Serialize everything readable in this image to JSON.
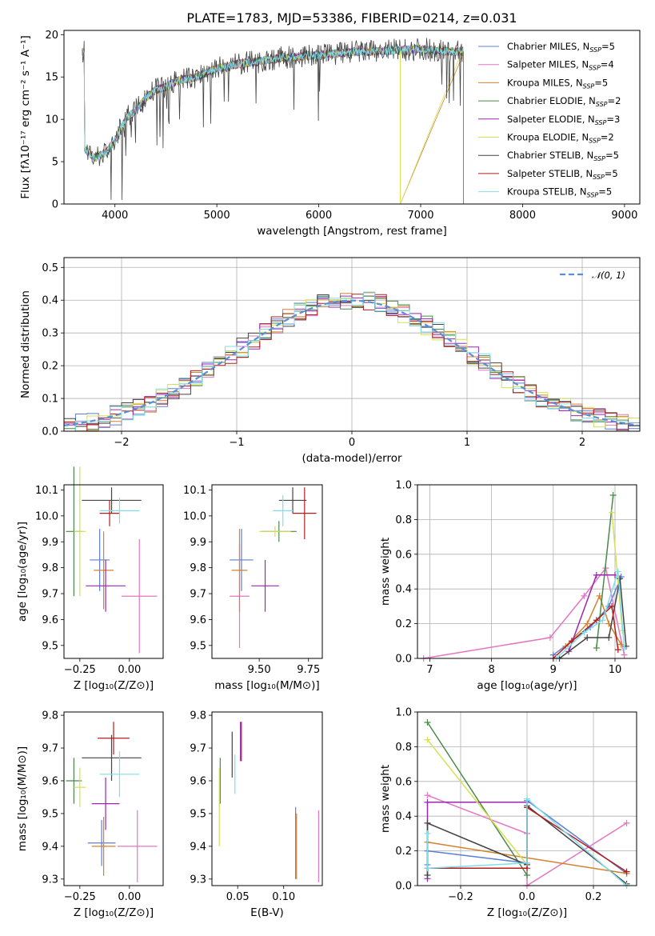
{
  "title": "PLATE=1783, MJD=53386, FIBERID=0214, z=0.031",
  "legend": [
    {
      "label": "Chabrier MILES, N",
      "sub": "SSP",
      "suffix": "=5",
      "color": "#5b7fd6"
    },
    {
      "label": "Salpeter MILES, N",
      "sub": "SSP",
      "suffix": "=4",
      "color": "#e377c2"
    },
    {
      "label": "Kroupa MILES, N",
      "sub": "SSP",
      "suffix": "=5",
      "color": "#d4822e"
    },
    {
      "label": "Chabrier ELODIE, N",
      "sub": "SSP",
      "suffix": "=2",
      "color": "#4a8a4a"
    },
    {
      "label": "Salpeter ELODIE, N",
      "sub": "SSP",
      "suffix": "=3",
      "color": "#9b27b0"
    },
    {
      "label": "Kroupa ELODIE, N",
      "sub": "SSP",
      "suffix": "=2",
      "color": "#d4e157"
    },
    {
      "label": "Chabrier STELIB, N",
      "sub": "SSP",
      "suffix": "=5",
      "color": "#444444"
    },
    {
      "label": "Salpeter STELIB, N",
      "sub": "SSP",
      "suffix": "=5",
      "color": "#b71c1c"
    },
    {
      "label": "Kroupa STELIB, N",
      "sub": "SSP",
      "suffix": "=5",
      "color": "#80deea"
    }
  ],
  "chart_data": [
    {
      "type": "line",
      "name": "spectrum",
      "xlabel": "wavelength [Angstrom, rest frame]",
      "ylabel": "Flux [fλ10⁻¹⁷ erg cm⁻² s⁻¹ A⁻¹]",
      "xlim": [
        3500,
        9150
      ],
      "ylim": [
        0,
        20.5
      ],
      "xticks": [
        4000,
        5000,
        6000,
        7000,
        8000,
        9000
      ],
      "yticks": [
        0,
        5,
        10,
        15,
        20
      ],
      "x": [
        3700,
        3800,
        3900,
        4000,
        4100,
        4200,
        4300,
        4400,
        4500,
        4600,
        4800,
        5000,
        5200,
        5400,
        5600,
        5800,
        6000,
        6200,
        6400,
        6600,
        6800,
        7000,
        7200,
        7400
      ],
      "y": [
        6.5,
        5.5,
        6.0,
        7.5,
        10.0,
        11.0,
        12.5,
        13.5,
        13.8,
        14.5,
        15.0,
        16.0,
        16.5,
        16.8,
        17.2,
        17.4,
        17.6,
        17.8,
        18.0,
        18.0,
        18.2,
        18.3,
        18.1,
        18.0
      ],
      "legend_position": "right"
    },
    {
      "type": "histogram",
      "name": "residuals",
      "xlabel": "(data-model)/error",
      "ylabel": "Normed distribution",
      "xlim": [
        -2.5,
        2.5
      ],
      "ylim": [
        0,
        0.53
      ],
      "xticks": [
        -2,
        -1,
        0,
        1,
        2
      ],
      "yticks": [
        0.0,
        0.1,
        0.2,
        0.3,
        0.4,
        0.5
      ],
      "reference": {
        "label": "𝒩(0, 1)",
        "type": "gaussian",
        "mean": 0,
        "sigma": 1
      },
      "legend_position": "top-right"
    },
    {
      "type": "scatter",
      "name": "age-vs-Z",
      "xlabel": "Z [log₁₀(Z/Z⊙)]",
      "ylabel": "age  [log₁₀(age/yr)]",
      "xlim": [
        -0.33,
        0.17
      ],
      "ylim": [
        9.45,
        10.12
      ],
      "xticks": [
        -0.25,
        0.0
      ],
      "yticks": [
        9.5,
        9.6,
        9.7,
        9.8,
        9.9,
        10.0,
        10.1
      ],
      "points": [
        {
          "x": -0.15,
          "y": 9.83,
          "xerr": 0.05,
          "yerr": 0.12,
          "color": "#5b7fd6"
        },
        {
          "x": 0.05,
          "y": 9.69,
          "xerr": 0.09,
          "yerr": 0.22,
          "color": "#e377c2"
        },
        {
          "x": -0.13,
          "y": 9.79,
          "xerr": 0.05,
          "yerr": 0.15,
          "color": "#d4822e"
        },
        {
          "x": -0.28,
          "y": 9.94,
          "xerr": 0.04,
          "yerr": 0.25,
          "color": "#4a8a4a"
        },
        {
          "x": -0.12,
          "y": 9.73,
          "xerr": 0.1,
          "yerr": 0.1,
          "color": "#9b27b0"
        },
        {
          "x": -0.25,
          "y": 9.94,
          "xerr": 0.03,
          "yerr": 0.25,
          "color": "#d4e157"
        },
        {
          "x": -0.09,
          "y": 10.06,
          "xerr": 0.15,
          "yerr": 0.05,
          "color": "#444444"
        },
        {
          "x": -0.1,
          "y": 10.01,
          "xerr": 0.05,
          "yerr": 0.05,
          "color": "#b71c1c"
        },
        {
          "x": -0.05,
          "y": 10.02,
          "xerr": 0.1,
          "yerr": 0.05,
          "color": "#80deea"
        }
      ]
    },
    {
      "type": "scatter",
      "name": "age-vs-mass",
      "xlabel": "mass [log₁₀(M/M⊙)]",
      "ylabel": "",
      "xlim": [
        9.26,
        9.82
      ],
      "ylim": [
        9.45,
        10.12
      ],
      "xticks": [
        9.5,
        9.75
      ],
      "yticks": [
        9.5,
        9.6,
        9.7,
        9.8,
        9.9,
        10.0,
        10.1
      ],
      "points": [
        {
          "x": 9.41,
          "y": 9.83,
          "xerr": 0.06,
          "yerr": 0.12,
          "color": "#5b7fd6"
        },
        {
          "x": 9.4,
          "y": 9.69,
          "xerr": 0.05,
          "yerr": 0.2,
          "color": "#e377c2"
        },
        {
          "x": 9.4,
          "y": 9.79,
          "xerr": 0.04,
          "yerr": 0.16,
          "color": "#d4822e"
        },
        {
          "x": 9.6,
          "y": 9.94,
          "xerr": 0.09,
          "yerr": 0.04,
          "color": "#4a8a4a"
        },
        {
          "x": 9.53,
          "y": 9.73,
          "xerr": 0.07,
          "yerr": 0.1,
          "color": "#9b27b0"
        },
        {
          "x": 9.58,
          "y": 9.94,
          "xerr": 0.08,
          "yerr": 0.02,
          "color": "#d4e157"
        },
        {
          "x": 9.67,
          "y": 10.06,
          "xerr": 0.07,
          "yerr": 0.05,
          "color": "#444444"
        },
        {
          "x": 9.73,
          "y": 10.01,
          "xerr": 0.06,
          "yerr": 0.1,
          "color": "#b71c1c"
        },
        {
          "x": 9.62,
          "y": 10.02,
          "xerr": 0.05,
          "yerr": 0.06,
          "color": "#80deea"
        }
      ]
    },
    {
      "type": "line",
      "name": "mass-weight-vs-age",
      "xlabel": "age  [log₁₀(age/yr)]",
      "ylabel": "mass weight",
      "xlim": [
        6.8,
        10.35
      ],
      "ylim": [
        0,
        1.0
      ],
      "xticks": [
        7,
        8,
        9,
        10
      ],
      "yticks": [
        0.0,
        0.2,
        0.4,
        0.6,
        0.8,
        1.0
      ],
      "series": [
        {
          "color": "#5b7fd6",
          "x": [
            9.0,
            9.3,
            9.6,
            9.9,
            10.1
          ],
          "y": [
            0.02,
            0.1,
            0.18,
            0.3,
            0.47
          ]
        },
        {
          "color": "#e377c2",
          "x": [
            6.9,
            8.95,
            9.5,
            9.85,
            10.15
          ],
          "y": [
            0.0,
            0.12,
            0.36,
            0.52,
            0.02
          ]
        },
        {
          "color": "#d4822e",
          "x": [
            9.2,
            9.55,
            9.75,
            9.9,
            10.1
          ],
          "y": [
            0.07,
            0.2,
            0.36,
            0.2,
            0.08
          ]
        },
        {
          "color": "#4a8a4a",
          "x": [
            9.7,
            9.97
          ],
          "y": [
            0.06,
            0.94
          ]
        },
        {
          "color": "#9b27b0",
          "x": [
            9.25,
            9.7,
            10.0
          ],
          "y": [
            0.04,
            0.48,
            0.48
          ]
        },
        {
          "color": "#d4e157",
          "x": [
            9.95,
            10.12
          ],
          "y": [
            0.84,
            0.16
          ]
        },
        {
          "color": "#444444",
          "x": [
            9.1,
            9.55,
            9.9,
            10.08,
            10.18
          ],
          "y": [
            0.0,
            0.12,
            0.12,
            0.46,
            0.07
          ]
        },
        {
          "color": "#b71c1c",
          "x": [
            9.0,
            9.3,
            9.7,
            9.95,
            10.05
          ],
          "y": [
            0.0,
            0.1,
            0.22,
            0.3,
            0.05
          ]
        },
        {
          "color": "#80deea",
          "x": [
            9.05,
            9.5,
            9.8,
            10.05,
            10.15
          ],
          "y": [
            0.0,
            0.15,
            0.22,
            0.5,
            0.06
          ]
        }
      ]
    },
    {
      "type": "scatter",
      "name": "mass-vs-Z",
      "xlabel": "Z [log₁₀(Z/Z⊙)]",
      "ylabel": "mass [log₁₀(M/M⊙)]",
      "xlim": [
        -0.33,
        0.17
      ],
      "ylim": [
        9.28,
        9.81
      ],
      "xticks": [
        -0.25,
        0.0
      ],
      "yticks": [
        9.3,
        9.4,
        9.5,
        9.6,
        9.7,
        9.8
      ],
      "points": [
        {
          "x": -0.14,
          "y": 9.41,
          "xerr": 0.07,
          "yerr": 0.07,
          "color": "#5b7fd6"
        },
        {
          "x": 0.04,
          "y": 9.4,
          "xerr": 0.1,
          "yerr": 0.11,
          "color": "#e377c2"
        },
        {
          "x": -0.13,
          "y": 9.4,
          "xerr": 0.06,
          "yerr": 0.09,
          "color": "#d4822e"
        },
        {
          "x": -0.28,
          "y": 9.6,
          "xerr": 0.04,
          "yerr": 0.07,
          "color": "#4a8a4a"
        },
        {
          "x": -0.12,
          "y": 9.53,
          "xerr": 0.07,
          "yerr": 0.08,
          "color": "#9b27b0"
        },
        {
          "x": -0.25,
          "y": 9.58,
          "xerr": 0.03,
          "yerr": 0.06,
          "color": "#d4e157"
        },
        {
          "x": -0.09,
          "y": 9.67,
          "xerr": 0.15,
          "yerr": 0.07,
          "color": "#444444"
        },
        {
          "x": -0.08,
          "y": 9.73,
          "xerr": 0.08,
          "yerr": 0.05,
          "color": "#b71c1c"
        },
        {
          "x": -0.05,
          "y": 9.62,
          "xerr": 0.1,
          "yerr": 0.07,
          "color": "#80deea"
        }
      ]
    },
    {
      "type": "scatter",
      "name": "mass-vs-ebv",
      "xlabel": "E(B-V)",
      "ylabel": "",
      "xlim": [
        0.022,
        0.142
      ],
      "ylim": [
        9.28,
        9.81
      ],
      "xticks": [
        0.05,
        0.1
      ],
      "yticks": [
        9.3,
        9.4,
        9.5,
        9.6,
        9.7,
        9.8
      ],
      "points": [
        {
          "x": 0.113,
          "y": 9.41,
          "xerr": 0,
          "yerr": 0.11,
          "color": "#5b7fd6"
        },
        {
          "x": 0.138,
          "y": 9.4,
          "xerr": 0,
          "yerr": 0.11,
          "color": "#e377c2"
        },
        {
          "x": 0.114,
          "y": 9.4,
          "xerr": 0,
          "yerr": 0.1,
          "color": "#d4822e"
        },
        {
          "x": 0.031,
          "y": 9.6,
          "xerr": 0,
          "yerr": 0.07,
          "color": "#4a8a4a"
        },
        {
          "x": 0.053,
          "y": 9.72,
          "xerr": 0,
          "yerr": 0.06,
          "color": "#9b27b0"
        },
        {
          "x": 0.03,
          "y": 9.52,
          "xerr": 0,
          "yerr": 0.12,
          "color": "#d4e157"
        },
        {
          "x": 0.044,
          "y": 9.68,
          "xerr": 0,
          "yerr": 0.07,
          "color": "#444444"
        },
        {
          "x": 0.054,
          "y": 9.72,
          "xerr": 0,
          "yerr": 0.06,
          "color": "#b71c1c"
        },
        {
          "x": 0.047,
          "y": 9.62,
          "xerr": 0,
          "yerr": 0.06,
          "color": "#80deea"
        }
      ]
    },
    {
      "type": "line",
      "name": "mass-weight-vs-Z",
      "xlabel": "Z [log₁₀(Z/Z⊙)]",
      "ylabel": "mass weight",
      "xlim": [
        -0.33,
        0.33
      ],
      "ylim": [
        0,
        1.0
      ],
      "xticks": [
        -0.2,
        0.0,
        0.2
      ],
      "yticks": [
        0.0,
        0.2,
        0.4,
        0.6,
        0.8,
        1.0
      ],
      "series": [
        {
          "color": "#5b7fd6",
          "x": [
            -0.3,
            -0.3,
            0.0,
            0.0,
            0.3
          ],
          "y": [
            0.12,
            0.2,
            0.13,
            0.49,
            0.07
          ]
        },
        {
          "color": "#e377c2",
          "x": [
            -0.3,
            0.0,
            0.0,
            0.3
          ],
          "y": [
            0.52,
            0.3,
            0.0,
            0.36
          ]
        },
        {
          "color": "#d4822e",
          "x": [
            -0.3,
            0.3
          ],
          "y": [
            0.25,
            0.07
          ]
        },
        {
          "color": "#4a8a4a",
          "x": [
            -0.3,
            0.0
          ],
          "y": [
            0.94,
            0.06
          ]
        },
        {
          "color": "#9b27b0",
          "x": [
            -0.3,
            -0.3,
            0.0
          ],
          "y": [
            0.04,
            0.48,
            0.48
          ]
        },
        {
          "color": "#d4e157",
          "x": [
            -0.3,
            0.0
          ],
          "y": [
            0.84,
            0.12
          ]
        },
        {
          "color": "#444444",
          "x": [
            -0.3,
            -0.3,
            0.0,
            0.0,
            0.3
          ],
          "y": [
            0.06,
            0.36,
            0.12,
            0.46,
            0.01
          ]
        },
        {
          "color": "#b71c1c",
          "x": [
            -0.3,
            0.0,
            0.0,
            0.3
          ],
          "y": [
            0.1,
            0.1,
            0.45,
            0.08
          ]
        },
        {
          "color": "#80deea",
          "x": [
            -0.3,
            -0.3,
            0.0,
            0.0,
            0.3
          ],
          "y": [
            0.3,
            0.1,
            0.13,
            0.5,
            0.0
          ]
        }
      ]
    }
  ]
}
